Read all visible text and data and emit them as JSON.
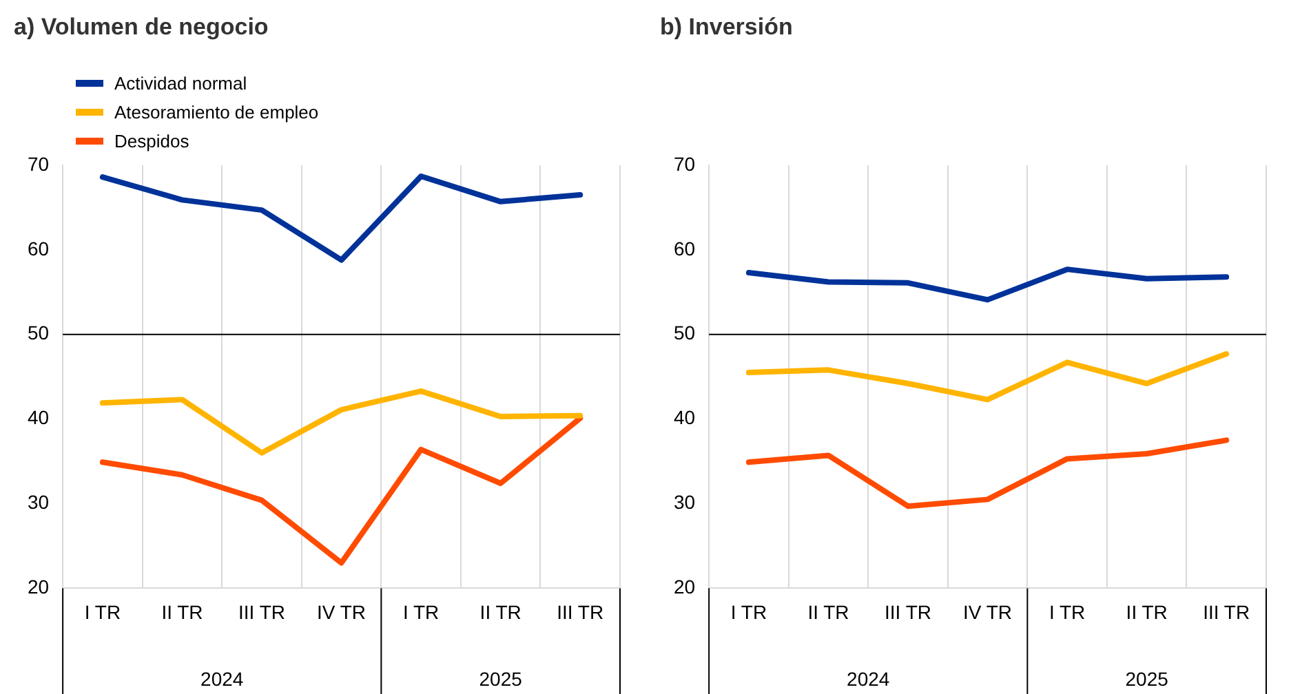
{
  "chart_data": [
    {
      "type": "line",
      "title": "a) Volumen de negocio",
      "categories": [
        "I TR",
        "II TR",
        "III TR",
        "IV TR",
        "I TR",
        "II TR",
        "III TR"
      ],
      "series": [
        {
          "name": "Actividad normal",
          "color": "#003299",
          "values": [
            68.6,
            65.9,
            64.7,
            58.8,
            68.7,
            65.7,
            66.5
          ]
        },
        {
          "name": "Atesoramiento de empleo",
          "color": "#ffb400",
          "values": [
            41.9,
            42.3,
            36.0,
            41.1,
            43.3,
            40.3,
            40.4
          ]
        },
        {
          "name": "Despidos",
          "color": "#ff4b00",
          "values": [
            34.9,
            33.4,
            30.4,
            23.0,
            36.4,
            32.4,
            40.1
          ]
        }
      ],
      "ylim": [
        20,
        70
      ],
      "yticks": [
        20,
        30,
        40,
        50,
        60,
        70
      ],
      "grid": "x",
      "legend": "top left",
      "marker": "none",
      "line_style": "solid",
      "ref_lines": [
        {
          "axis": "y",
          "value": 50,
          "color": "#000000"
        }
      ],
      "annotations": [
        "2024",
        "2025"
      ]
    },
    {
      "type": "line",
      "title": "b) Inversión",
      "categories": [
        "I TR",
        "II TR",
        "III TR",
        "IV TR",
        "I TR",
        "II TR",
        "III TR"
      ],
      "series": [
        {
          "color": "#003299",
          "values": [
            57.3,
            56.2,
            56.1,
            54.1,
            57.7,
            56.6,
            56.8
          ]
        },
        {
          "color": "#ffb400",
          "values": [
            45.5,
            45.8,
            44.2,
            42.3,
            46.7,
            44.2,
            47.7
          ]
        },
        {
          "color": "#ff4b00",
          "values": [
            34.9,
            35.7,
            29.7,
            30.5,
            35.3,
            35.9,
            37.5
          ]
        }
      ],
      "ylim": [
        20,
        70
      ],
      "yticks": [
        20,
        30,
        40,
        50,
        60,
        70
      ],
      "grid": "x",
      "marker": "none",
      "line_style": "solid",
      "ref_lines": [
        {
          "axis": "y",
          "value": 50,
          "color": "#000000"
        }
      ],
      "annotations": [
        "2024",
        "2025"
      ]
    }
  ]
}
